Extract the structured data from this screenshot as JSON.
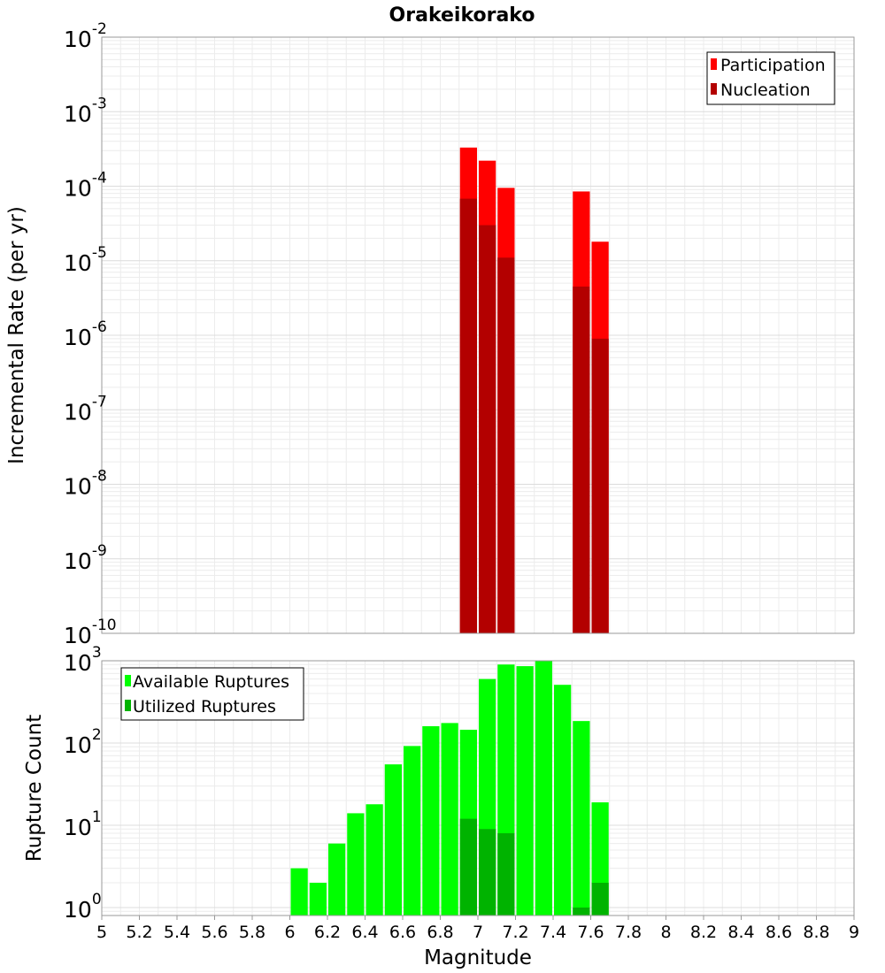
{
  "chart_data": [
    {
      "type": "bar",
      "title": "Orakeikorako",
      "xlabel": "Magnitude",
      "ylabel": "Incremental Rate (per yr)",
      "yscale": "log",
      "ylim": [
        1e-10,
        0.01
      ],
      "xlim": [
        5,
        9
      ],
      "y_tick_exponents": [
        "-10",
        "-9",
        "-8",
        "-7",
        "-6",
        "-5",
        "-4",
        "-3",
        "-2"
      ],
      "legend": {
        "position": "top-right",
        "entries": [
          "Participation",
          "Nucleation"
        ]
      },
      "grid": true,
      "colors": {
        "Participation": "#ff0000",
        "Nucleation": "#b30000"
      },
      "x": [
        6.95,
        7.05,
        7.15,
        7.55,
        7.65
      ],
      "series": [
        {
          "name": "Participation",
          "values": [
            0.00033,
            0.00022,
            9.5e-05,
            8.5e-05,
            1.8e-05
          ]
        },
        {
          "name": "Nucleation",
          "values": [
            6.8e-05,
            3e-05,
            1.1e-05,
            4.5e-06,
            9e-07
          ]
        }
      ]
    },
    {
      "type": "bar",
      "xlabel": "Magnitude",
      "ylabel": "Rupture Count",
      "yscale": "log",
      "ylim": [
        0.8,
        1000
      ],
      "xlim": [
        5,
        9
      ],
      "y_tick_exponents": [
        "0",
        "1",
        "2",
        "3"
      ],
      "legend": {
        "position": "top-left",
        "entries": [
          "Available Ruptures",
          "Utilized Ruptures"
        ]
      },
      "grid": true,
      "colors": {
        "Available Ruptures": "#00ff00",
        "Utilized Ruptures": "#00b300"
      },
      "x": [
        6.05,
        6.15,
        6.25,
        6.35,
        6.45,
        6.55,
        6.65,
        6.75,
        6.85,
        6.95,
        7.05,
        7.15,
        7.25,
        7.35,
        7.45,
        7.55,
        7.65
      ],
      "series": [
        {
          "name": "Available Ruptures",
          "values": [
            3,
            2,
            6,
            14,
            18,
            55,
            92,
            160,
            175,
            145,
            600,
            900,
            860,
            1000,
            510,
            185,
            19
          ]
        },
        {
          "name": "Utilized Ruptures",
          "values": [
            null,
            null,
            null,
            null,
            null,
            null,
            null,
            null,
            null,
            12,
            9,
            8,
            null,
            null,
            null,
            1,
            2
          ]
        }
      ]
    }
  ],
  "x_tick_labels": [
    "5",
    "5.2",
    "5.4",
    "5.6",
    "5.8",
    "6",
    "6.2",
    "6.4",
    "6.6",
    "6.8",
    "7",
    "7.2",
    "7.4",
    "7.6",
    "7.8",
    "8",
    "8.2",
    "8.4",
    "8.6",
    "8.8",
    "9"
  ]
}
